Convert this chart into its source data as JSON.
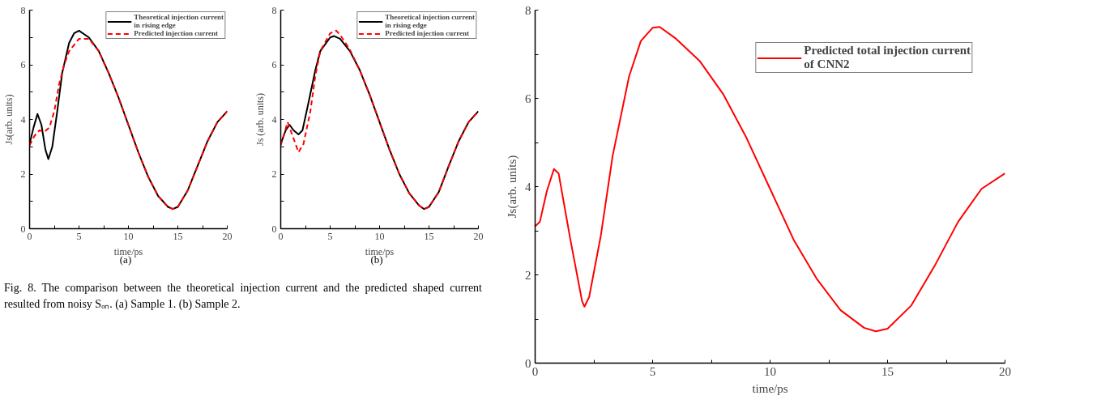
{
  "chart_data": [
    {
      "type": "line",
      "xlabel": "time/ps",
      "ylabel": "Js(arb. units)",
      "xlim": [
        0,
        20
      ],
      "ylim": [
        0,
        8
      ],
      "xticks": [
        0,
        {
          "value": 2.5,
          "label": null
        },
        5,
        {
          "value": 7.5,
          "label": null
        },
        10,
        {
          "value": 12.5,
          "label": null
        },
        15,
        {
          "value": 17.5,
          "label": null
        },
        20
      ],
      "yticks": [
        0,
        {
          "value": 1,
          "label": null
        },
        2,
        {
          "value": 3,
          "label": null
        },
        4,
        {
          "value": 5,
          "label": null
        },
        6,
        {
          "value": 7,
          "label": null
        },
        8
      ],
      "grid": false,
      "legend": "top right",
      "marker": "none",
      "annotations": [
        "(a)",
        "Fig. 8.   The comparison between the theoretical injection current and the predicted shaped current resulted from noisy Sₒₙ. (a) Sample 1. (b) Sample 2."
      ],
      "series": [
        {
          "name": "Theoretical injection current in rising edge",
          "color": "#000000",
          "line_style": "solid",
          "x": [
            0,
            0.4,
            0.8,
            1.2,
            1.6,
            1.9,
            2.3,
            2.8,
            3.3,
            4,
            4.5,
            5,
            6,
            7,
            8,
            9,
            10,
            11,
            12,
            13,
            14,
            14.5,
            15,
            16,
            17,
            18,
            19,
            20
          ],
          "values": [
            3.1,
            3.7,
            4.2,
            3.8,
            2.9,
            2.55,
            3.0,
            4.3,
            5.7,
            6.8,
            7.15,
            7.25,
            7.0,
            6.5,
            5.7,
            4.8,
            3.8,
            2.8,
            1.9,
            1.2,
            0.8,
            0.72,
            0.8,
            1.4,
            2.3,
            3.2,
            3.9,
            4.3
          ]
        },
        {
          "name": "Predicted injection current",
          "color": "#ff0000",
          "line_style": "dashed",
          "x": [
            0,
            0.5,
            1,
            1.5,
            2,
            2.5,
            3,
            3.5,
            4,
            5,
            6,
            7,
            8,
            9,
            10,
            11,
            12,
            13,
            14,
            14.5,
            15,
            16,
            17,
            18,
            19,
            20
          ],
          "values": [
            3.05,
            3.4,
            3.6,
            3.55,
            3.7,
            4.3,
            5.3,
            6.0,
            6.5,
            6.95,
            6.95,
            6.5,
            5.7,
            4.8,
            3.8,
            2.8,
            1.9,
            1.2,
            0.8,
            0.72,
            0.8,
            1.4,
            2.3,
            3.2,
            3.9,
            4.3
          ]
        }
      ]
    },
    {
      "type": "line",
      "xlabel": "time/ps",
      "ylabel": "Js (arb. units)",
      "xlim": [
        0,
        20
      ],
      "ylim": [
        0,
        8
      ],
      "xticks": [
        0,
        {
          "value": 2.5,
          "label": null
        },
        5,
        {
          "value": 7.5,
          "label": null
        },
        10,
        {
          "value": 12.5,
          "label": null
        },
        15,
        {
          "value": 17.5,
          "label": null
        },
        20
      ],
      "yticks": [
        0,
        {
          "value": 1,
          "label": null
        },
        2,
        {
          "value": 3,
          "label": null
        },
        4,
        {
          "value": 5,
          "label": null
        },
        6,
        {
          "value": 7,
          "label": null
        },
        8
      ],
      "grid": false,
      "legend": "top right",
      "marker": "none",
      "annotations": [
        "(b)"
      ],
      "series": [
        {
          "name": "Theoretical injection current in rising edge",
          "color": "#000000",
          "line_style": "solid",
          "x": [
            0,
            0.5,
            0.9,
            1.3,
            1.8,
            2.2,
            2.8,
            3.5,
            4,
            5,
            5.4,
            6,
            7,
            8,
            9,
            10,
            11,
            12,
            13,
            14,
            14.5,
            15,
            16,
            17,
            18,
            19,
            20
          ],
          "values": [
            3.1,
            3.6,
            3.8,
            3.6,
            3.45,
            3.6,
            4.6,
            5.8,
            6.5,
            7.0,
            7.05,
            6.95,
            6.5,
            5.8,
            4.9,
            3.9,
            2.9,
            2.0,
            1.3,
            0.85,
            0.72,
            0.8,
            1.35,
            2.3,
            3.2,
            3.9,
            4.3
          ]
        },
        {
          "name": "Predicted injection current",
          "color": "#ff0000",
          "line_style": "dashed",
          "x": [
            0,
            0.7,
            1.2,
            1.8,
            2.3,
            3,
            3.5,
            4,
            5,
            5.6,
            6,
            7,
            8,
            9,
            10,
            11,
            12,
            13,
            14,
            14.5,
            15,
            16,
            17,
            18,
            19,
            20
          ],
          "values": [
            3.05,
            3.9,
            3.4,
            2.8,
            3.1,
            4.3,
            5.6,
            6.5,
            7.15,
            7.25,
            7.1,
            6.55,
            5.8,
            4.9,
            3.9,
            2.9,
            2.0,
            1.3,
            0.85,
            0.72,
            0.8,
            1.35,
            2.3,
            3.2,
            3.9,
            4.3
          ]
        }
      ]
    },
    {
      "type": "line",
      "xlabel": "time/ps",
      "ylabel": "Js(arb. units)",
      "xlim": [
        0,
        20
      ],
      "ylim": [
        0,
        8
      ],
      "xticks": [
        0,
        {
          "value": 2.5,
          "label": null
        },
        5,
        {
          "value": 7.5,
          "label": null
        },
        10,
        {
          "value": 12.5,
          "label": null
        },
        15,
        {
          "value": 17.5,
          "label": null
        },
        20
      ],
      "yticks": [
        0,
        {
          "value": 1,
          "label": null
        },
        2,
        {
          "value": 3,
          "label": null
        },
        4,
        {
          "value": 5,
          "label": null
        },
        6,
        {
          "value": 7,
          "label": null
        },
        8
      ],
      "grid": false,
      "legend": "top right",
      "marker": "none",
      "series": [
        {
          "name": "Predicted total injection current of CNN2",
          "color": "#ff0000",
          "line_style": "solid",
          "x": [
            0,
            0.2,
            0.5,
            0.8,
            1,
            1.5,
            2,
            2.1,
            2.3,
            2.8,
            3.3,
            4,
            4.5,
            5,
            5.3,
            6,
            7,
            8,
            9,
            10,
            11,
            12,
            13,
            14,
            14.5,
            15,
            16,
            17,
            18,
            19,
            20
          ],
          "values": [
            3.1,
            3.2,
            3.9,
            4.4,
            4.3,
            2.8,
            1.4,
            1.28,
            1.5,
            2.9,
            4.7,
            6.5,
            7.3,
            7.6,
            7.62,
            7.35,
            6.85,
            6.1,
            5.1,
            3.95,
            2.8,
            1.9,
            1.2,
            0.8,
            0.72,
            0.78,
            1.3,
            2.2,
            3.2,
            3.95,
            4.3
          ]
        }
      ]
    }
  ]
}
